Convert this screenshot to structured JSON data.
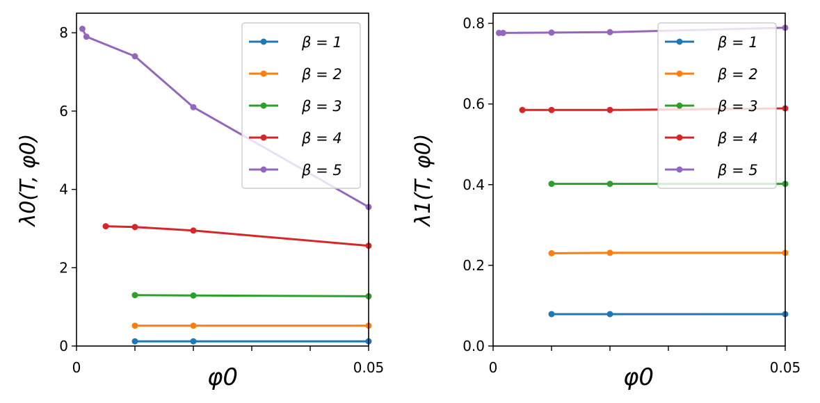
{
  "chart_data": [
    {
      "type": "line",
      "xlabel": "φ0",
      "ylabel": "λ0(T, φ0)",
      "xlim": [
        0,
        0.05
      ],
      "ylim": [
        0,
        8.5
      ],
      "xtick_labels": [
        {
          "value": 0,
          "label": "0"
        },
        {
          "value": 0.05,
          "label": "0.05"
        }
      ],
      "xtick_minor": [
        0.01,
        0.02,
        0.03,
        0.04
      ],
      "yticks": [
        0,
        2,
        4,
        6,
        8
      ],
      "ytick_labels": [
        "0",
        "2",
        "4",
        "6",
        "8"
      ],
      "legend_position": "top-right",
      "series": [
        {
          "name": "β = 1",
          "color": "#1f77b4",
          "x": [
            0.01,
            0.02,
            0.05
          ],
          "y": [
            0.12,
            0.12,
            0.12
          ]
        },
        {
          "name": "β = 2",
          "color": "#ff7f0e",
          "x": [
            0.01,
            0.02,
            0.05
          ],
          "y": [
            0.52,
            0.52,
            0.52
          ]
        },
        {
          "name": "β = 3",
          "color": "#2ca02c",
          "x": [
            0.01,
            0.02,
            0.05
          ],
          "y": [
            1.3,
            1.29,
            1.27
          ]
        },
        {
          "name": "β = 4",
          "color": "#d62728",
          "x": [
            0.005,
            0.01,
            0.02,
            0.05
          ],
          "y": [
            3.06,
            3.04,
            2.95,
            2.56
          ]
        },
        {
          "name": "β = 5",
          "color": "#9467bd",
          "x": [
            0.001,
            0.0017,
            0.01,
            0.02,
            0.05
          ],
          "y": [
            8.1,
            7.9,
            7.4,
            6.1,
            3.55
          ]
        }
      ]
    },
    {
      "type": "line",
      "xlabel": "φ0",
      "ylabel": "λ1(T, φ0)",
      "xlim": [
        0,
        0.05
      ],
      "ylim": [
        0,
        0.825
      ],
      "xtick_labels": [
        {
          "value": 0,
          "label": "0"
        },
        {
          "value": 0.05,
          "label": "0.05"
        }
      ],
      "xtick_minor": [
        0.01,
        0.02,
        0.03,
        0.04
      ],
      "yticks": [
        0,
        0.2,
        0.4,
        0.6,
        0.8
      ],
      "ytick_labels": [
        "0.0",
        "0.2",
        "0.4",
        "0.6",
        "0.8"
      ],
      "legend_position": "top-right",
      "series": [
        {
          "name": "β = 1",
          "color": "#1f77b4",
          "x": [
            0.01,
            0.02,
            0.05
          ],
          "y": [
            0.079,
            0.079,
            0.079
          ]
        },
        {
          "name": "β = 2",
          "color": "#ff7f0e",
          "x": [
            0.01,
            0.02,
            0.05
          ],
          "y": [
            0.23,
            0.231,
            0.231
          ]
        },
        {
          "name": "β = 3",
          "color": "#2ca02c",
          "x": [
            0.01,
            0.02,
            0.05
          ],
          "y": [
            0.402,
            0.402,
            0.402
          ]
        },
        {
          "name": "β = 4",
          "color": "#d62728",
          "x": [
            0.005,
            0.01,
            0.02,
            0.05
          ],
          "y": [
            0.585,
            0.585,
            0.585,
            0.589
          ]
        },
        {
          "name": "β = 5",
          "color": "#9467bd",
          "x": [
            0.001,
            0.0017,
            0.01,
            0.02,
            0.05
          ],
          "y": [
            0.776,
            0.776,
            0.777,
            0.778,
            0.789
          ]
        }
      ]
    }
  ]
}
